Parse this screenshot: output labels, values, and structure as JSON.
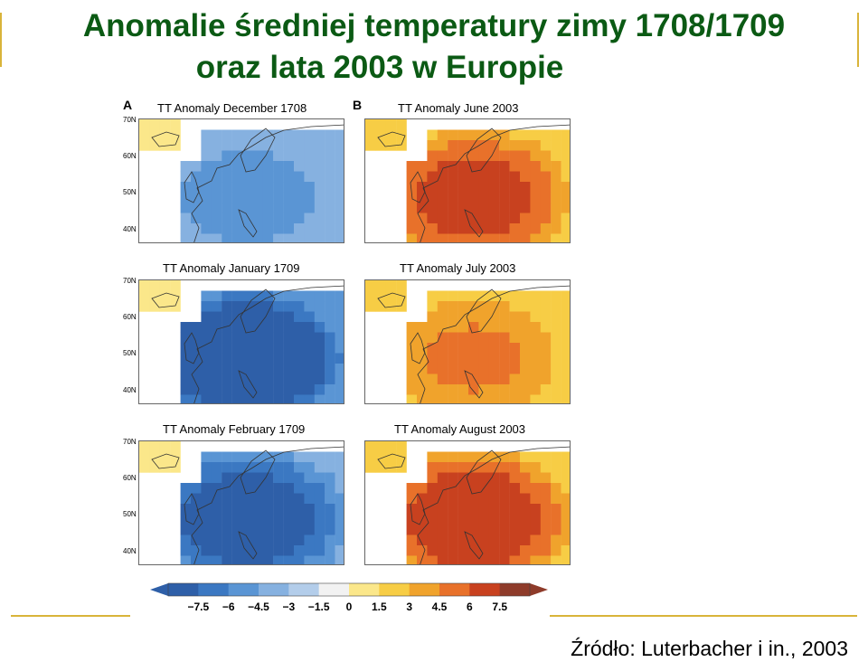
{
  "title": {
    "line1": "Anomalie średniej temperatury zimy 1708/1709",
    "line2": "oraz lata 2003 w Europie"
  },
  "panels": {
    "group_a_label": "A",
    "group_b_label": "B",
    "left": [
      {
        "title": "TT Anomaly December 1708",
        "intensity": 0.3
      },
      {
        "title": "TT Anomaly January 1709",
        "intensity": 0.85
      },
      {
        "title": "TT Anomaly February 1709",
        "intensity": 0.7
      }
    ],
    "right": [
      {
        "title": "TT Anomaly June 2003",
        "intensity": 0.7
      },
      {
        "title": "TT Anomaly July 2003",
        "intensity": 0.45
      },
      {
        "title": "TT Anomaly August 2003",
        "intensity": 0.8
      }
    ],
    "latitude_labels": [
      "70N",
      "60N",
      "50N",
      "40N"
    ]
  },
  "colorbar": {
    "labels": [
      "−7.5",
      "−6",
      "−4.5",
      "−3",
      "−1.5",
      "0",
      "1.5",
      "3",
      "4.5",
      "6",
      "7.5"
    ],
    "colors": [
      "#2e5fa8",
      "#3b78c2",
      "#5a95d4",
      "#86b1e0",
      "#b3cdea",
      "#f2f2f2",
      "#fbe78a",
      "#f7cd45",
      "#f0a32c",
      "#e8712a",
      "#c8411f",
      "#8e3b2a"
    ]
  },
  "source": "Źródło: Luterbacher i in., 2003"
}
